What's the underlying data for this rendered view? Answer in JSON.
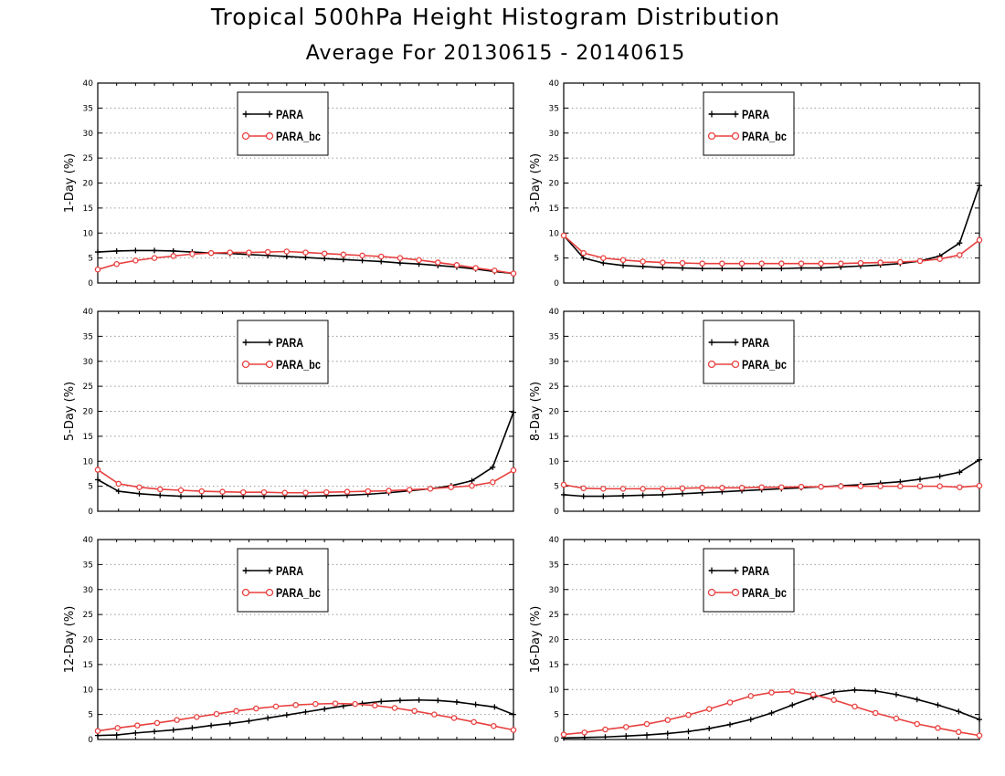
{
  "figure": {
    "title": "Tropical 500hPa Height Histogram Distribution",
    "subtitle": "Average For 20130615 - 20140615"
  },
  "colors": {
    "PARA": "#000000",
    "PARA_bc": "#e8403f",
    "grid": "#9a9a9a"
  },
  "chart_data": [
    {
      "type": "line",
      "ylabel": "1-Day (%)",
      "ylim": [
        0,
        40
      ],
      "yticks": [
        "0",
        "5",
        "10",
        "15",
        "20",
        "25",
        "30",
        "35",
        "40"
      ],
      "grid": true,
      "legend": "top-left",
      "series": [
        {
          "name": "PARA",
          "marker": "plus",
          "values": [
            6.2,
            6.4,
            6.5,
            6.5,
            6.4,
            6.2,
            6.0,
            5.9,
            5.7,
            5.5,
            5.3,
            5.1,
            4.9,
            4.7,
            4.5,
            4.3,
            4.0,
            3.8,
            3.5,
            3.2,
            2.8,
            2.3,
            1.9
          ]
        },
        {
          "name": "PARA_bc",
          "marker": "circle",
          "values": [
            2.7,
            3.8,
            4.5,
            5.0,
            5.4,
            5.8,
            6.0,
            6.1,
            6.1,
            6.2,
            6.3,
            6.1,
            5.9,
            5.7,
            5.5,
            5.3,
            5.0,
            4.6,
            4.1,
            3.6,
            3.0,
            2.5,
            1.9
          ]
        }
      ]
    },
    {
      "type": "line",
      "ylabel": "3-Day (%)",
      "ylim": [
        0,
        40
      ],
      "yticks": [
        "0",
        "5",
        "10",
        "15",
        "20",
        "25",
        "30",
        "35",
        "40"
      ],
      "grid": true,
      "legend": "top-left",
      "series": [
        {
          "name": "PARA",
          "marker": "plus",
          "values": [
            9.5,
            5.0,
            4.0,
            3.5,
            3.3,
            3.1,
            3.0,
            2.9,
            2.9,
            2.9,
            2.9,
            2.9,
            3.0,
            3.0,
            3.2,
            3.4,
            3.6,
            3.9,
            4.4,
            5.4,
            8.0,
            19.5
          ]
        },
        {
          "name": "PARA_bc",
          "marker": "circle",
          "values": [
            9.5,
            6.0,
            5.0,
            4.6,
            4.3,
            4.1,
            4.0,
            3.9,
            3.9,
            3.9,
            3.9,
            3.9,
            3.9,
            3.9,
            3.9,
            4.0,
            4.1,
            4.2,
            4.4,
            4.8,
            5.6,
            8.6
          ]
        }
      ]
    },
    {
      "type": "line",
      "ylabel": "5-Day (%)",
      "ylim": [
        0,
        40
      ],
      "yticks": [
        "0",
        "5",
        "10",
        "15",
        "20",
        "25",
        "30",
        "35",
        "40"
      ],
      "grid": true,
      "legend": "top-left",
      "series": [
        {
          "name": "PARA",
          "marker": "plus",
          "values": [
            6.3,
            4.0,
            3.5,
            3.2,
            3.0,
            3.0,
            3.0,
            3.0,
            3.0,
            3.0,
            3.0,
            3.1,
            3.2,
            3.4,
            3.7,
            4.1,
            4.5,
            5.1,
            6.1,
            8.8,
            19.8
          ]
        },
        {
          "name": "PARA_bc",
          "marker": "circle",
          "values": [
            8.3,
            5.5,
            4.8,
            4.4,
            4.2,
            4.0,
            3.9,
            3.8,
            3.8,
            3.7,
            3.7,
            3.8,
            3.9,
            4.0,
            4.1,
            4.3,
            4.5,
            4.8,
            5.1,
            5.8,
            8.2
          ]
        }
      ]
    },
    {
      "type": "line",
      "ylabel": "8-Day (%)",
      "ylim": [
        0,
        40
      ],
      "yticks": [
        "0",
        "5",
        "10",
        "15",
        "20",
        "25",
        "30",
        "35",
        "40"
      ],
      "grid": true,
      "legend": "top-left",
      "series": [
        {
          "name": "PARA",
          "marker": "plus",
          "values": [
            3.3,
            3.0,
            3.0,
            3.1,
            3.2,
            3.3,
            3.5,
            3.7,
            3.9,
            4.1,
            4.3,
            4.5,
            4.7,
            4.9,
            5.1,
            5.3,
            5.6,
            5.9,
            6.4,
            7.0,
            7.8,
            10.3
          ]
        },
        {
          "name": "PARA_bc",
          "marker": "circle",
          "values": [
            5.3,
            4.6,
            4.5,
            4.5,
            4.5,
            4.5,
            4.6,
            4.7,
            4.7,
            4.7,
            4.8,
            4.8,
            4.9,
            4.9,
            5.0,
            5.0,
            5.0,
            5.0,
            5.0,
            5.0,
            4.8,
            5.1
          ]
        }
      ]
    },
    {
      "type": "line",
      "ylabel": "12-Day (%)",
      "ylim": [
        0,
        40
      ],
      "yticks": [
        "0",
        "5",
        "10",
        "15",
        "20",
        "25",
        "30",
        "35",
        "40"
      ],
      "grid": true,
      "legend": "top-left",
      "series": [
        {
          "name": "PARA",
          "marker": "plus",
          "values": [
            0.8,
            0.9,
            1.3,
            1.6,
            1.9,
            2.3,
            2.8,
            3.2,
            3.7,
            4.3,
            4.9,
            5.5,
            6.1,
            6.7,
            7.2,
            7.6,
            7.8,
            7.9,
            7.8,
            7.5,
            7.0,
            6.5,
            5.0
          ]
        },
        {
          "name": "PARA_bc",
          "marker": "circle",
          "values": [
            1.7,
            2.3,
            2.8,
            3.3,
            3.9,
            4.5,
            5.1,
            5.7,
            6.2,
            6.6,
            6.9,
            7.1,
            7.2,
            7.1,
            6.8,
            6.3,
            5.7,
            5.0,
            4.3,
            3.5,
            2.7,
            1.9
          ]
        }
      ]
    },
    {
      "type": "line",
      "ylabel": "16-Day (%)",
      "ylim": [
        0,
        40
      ],
      "yticks": [
        "0",
        "5",
        "10",
        "15",
        "20",
        "25",
        "30",
        "35",
        "40"
      ],
      "grid": true,
      "legend": "top-left",
      "series": [
        {
          "name": "PARA",
          "marker": "plus",
          "values": [
            0.3,
            0.4,
            0.5,
            0.7,
            0.9,
            1.2,
            1.6,
            2.2,
            3.0,
            4.0,
            5.3,
            6.9,
            8.4,
            9.5,
            9.9,
            9.7,
            9.0,
            8.0,
            6.9,
            5.6,
            4.0
          ]
        },
        {
          "name": "PARA_bc",
          "marker": "circle",
          "values": [
            1.0,
            1.4,
            2.0,
            2.5,
            3.1,
            3.9,
            4.9,
            6.1,
            7.4,
            8.7,
            9.4,
            9.6,
            9.0,
            7.9,
            6.6,
            5.3,
            4.2,
            3.1,
            2.3,
            1.5,
            0.8
          ]
        }
      ]
    }
  ]
}
